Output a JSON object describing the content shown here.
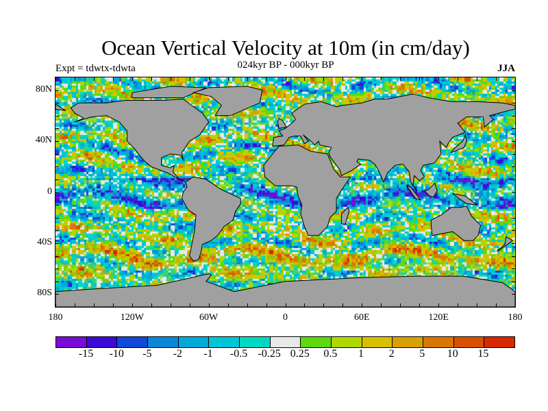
{
  "title": "Ocean Vertical Velocity at 10m (in cm/day)",
  "subtitle_left": "Expt = tdwtx-tdwta",
  "subtitle_center": "024kyr BP - 000kyr BP",
  "subtitle_right": "JJA",
  "map": {
    "projection": "cylindrical equidistant",
    "lon_range": [
      -180,
      180
    ],
    "lat_range": [
      -90,
      90
    ],
    "land_color": "#a0a0a0",
    "lat_ticks": [
      {
        "lat": 80,
        "label": "80N"
      },
      {
        "lat": 40,
        "label": "40N"
      },
      {
        "lat": 0,
        "label": "0"
      },
      {
        "lat": -40,
        "label": "40S"
      },
      {
        "lat": -80,
        "label": "80S"
      }
    ],
    "lon_ticks": [
      {
        "lon": -180,
        "label": "180"
      },
      {
        "lon": -120,
        "label": "120W"
      },
      {
        "lon": -60,
        "label": "60W"
      },
      {
        "lon": 0,
        "label": "0"
      },
      {
        "lon": 60,
        "label": "60E"
      },
      {
        "lon": 120,
        "label": "120E"
      },
      {
        "lon": 180,
        "label": "180"
      }
    ]
  },
  "colorbar": {
    "colors": [
      "#7a0ad8",
      "#3c0ad8",
      "#1048d8",
      "#0a88d8",
      "#00aad8",
      "#00c4d8",
      "#00d8c4",
      "#e8e8e8",
      "#60d810",
      "#b0d800",
      "#d8c000",
      "#d8a000",
      "#d87800",
      "#d85000",
      "#d82800"
    ],
    "labels": [
      "-15",
      "-10",
      "-5",
      "-2",
      "-1",
      "-0.5",
      "-0.25",
      "0.25",
      "0.5",
      "1",
      "2",
      "5",
      "10",
      "15"
    ]
  }
}
